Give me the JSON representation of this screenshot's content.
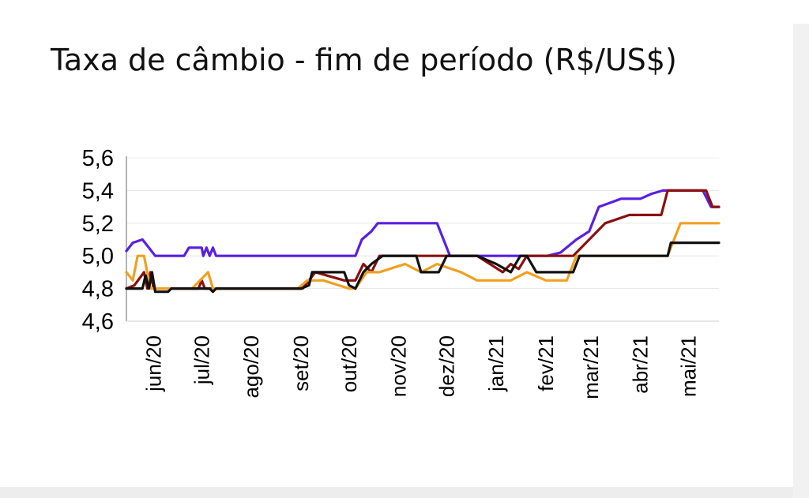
{
  "chart_data": {
    "type": "line",
    "title": "Taxa de câmbio - fim de período (R$/US$)",
    "xlabel": "",
    "ylabel": "",
    "ylim": [
      4.6,
      5.6
    ],
    "yticks": [
      "5,6",
      "5,4",
      "5,2",
      "5,0",
      "4,8",
      "4,6"
    ],
    "ytick_values": [
      5.6,
      5.4,
      5.2,
      5.0,
      4.8,
      4.6
    ],
    "x_range": [
      "2020-05-15",
      "2021-05-20"
    ],
    "x_tick_labels": [
      "jun/20",
      "jul/20",
      "ago/20",
      "set/20",
      "out/20",
      "nov/20",
      "dez/20",
      "jan/21",
      "fev/21",
      "mar/21",
      "abr/21",
      "mai/21"
    ],
    "x_tick_dates": [
      "2020-06-01",
      "2020-07-01",
      "2020-08-01",
      "2020-09-01",
      "2020-10-01",
      "2020-11-01",
      "2020-12-01",
      "2021-01-01",
      "2021-02-01",
      "2021-03-01",
      "2021-04-01",
      "2021-05-01"
    ],
    "grid": true,
    "legend": "none",
    "series": [
      {
        "color": "#5a1fe0",
        "points": [
          [
            "2020-05-15",
            5.03
          ],
          [
            "2020-05-19",
            5.08
          ],
          [
            "2020-05-25",
            5.1
          ],
          [
            "2020-05-29",
            5.05
          ],
          [
            "2020-06-02",
            5.0
          ],
          [
            "2020-06-20",
            5.0
          ],
          [
            "2020-06-23",
            5.05
          ],
          [
            "2020-07-01",
            5.05
          ],
          [
            "2020-07-02",
            5.0
          ],
          [
            "2020-07-04",
            5.05
          ],
          [
            "2020-07-06",
            5.0
          ],
          [
            "2020-07-08",
            5.05
          ],
          [
            "2020-07-10",
            5.0
          ],
          [
            "2020-09-15",
            5.0
          ],
          [
            "2020-10-05",
            5.0
          ],
          [
            "2020-10-09",
            5.1
          ],
          [
            "2020-10-15",
            5.15
          ],
          [
            "2020-10-19",
            5.2
          ],
          [
            "2020-11-25",
            5.2
          ],
          [
            "2020-11-29",
            5.1
          ],
          [
            "2020-12-03",
            5.0
          ],
          [
            "2021-02-02",
            5.0
          ],
          [
            "2021-02-10",
            5.02
          ],
          [
            "2021-02-20",
            5.1
          ],
          [
            "2021-02-28",
            5.15
          ],
          [
            "2021-03-06",
            5.3
          ],
          [
            "2021-03-20",
            5.35
          ],
          [
            "2021-04-01",
            5.35
          ],
          [
            "2021-04-08",
            5.38
          ],
          [
            "2021-04-15",
            5.4
          ],
          [
            "2021-05-10",
            5.4
          ],
          [
            "2021-05-15",
            5.3
          ],
          [
            "2021-05-20",
            5.3
          ]
        ]
      },
      {
        "color": "#8b1010",
        "points": [
          [
            "2020-05-15",
            4.8
          ],
          [
            "2020-05-20",
            4.82
          ],
          [
            "2020-05-26",
            4.9
          ],
          [
            "2020-05-28",
            4.8
          ],
          [
            "2020-05-30",
            4.9
          ],
          [
            "2020-06-01",
            4.8
          ],
          [
            "2020-06-29",
            4.8
          ],
          [
            "2020-07-01",
            4.85
          ],
          [
            "2020-07-03",
            4.8
          ],
          [
            "2020-09-02",
            4.8
          ],
          [
            "2020-09-06",
            4.85
          ],
          [
            "2020-09-10",
            4.9
          ],
          [
            "2020-09-28",
            4.85
          ],
          [
            "2020-10-05",
            4.85
          ],
          [
            "2020-10-10",
            4.95
          ],
          [
            "2020-10-15",
            4.9
          ],
          [
            "2020-10-20",
            5.0
          ],
          [
            "2020-12-20",
            5.0
          ],
          [
            "2020-12-28",
            4.95
          ],
          [
            "2021-01-05",
            4.9
          ],
          [
            "2021-01-10",
            4.95
          ],
          [
            "2021-01-15",
            4.92
          ],
          [
            "2021-01-20",
            5.0
          ],
          [
            "2021-02-18",
            5.0
          ],
          [
            "2021-02-28",
            5.1
          ],
          [
            "2021-03-10",
            5.2
          ],
          [
            "2021-03-25",
            5.25
          ],
          [
            "2021-04-14",
            5.25
          ],
          [
            "2021-04-18",
            5.4
          ],
          [
            "2021-05-12",
            5.4
          ],
          [
            "2021-05-16",
            5.3
          ],
          [
            "2021-05-20",
            5.3
          ]
        ]
      },
      {
        "color": "#f0a020",
        "points": [
          [
            "2020-05-15",
            4.9
          ],
          [
            "2020-05-19",
            4.85
          ],
          [
            "2020-05-22",
            5.0
          ],
          [
            "2020-05-26",
            5.0
          ],
          [
            "2020-05-30",
            4.8
          ],
          [
            "2020-06-25",
            4.8
          ],
          [
            "2020-07-05",
            4.9
          ],
          [
            "2020-07-08",
            4.8
          ],
          [
            "2020-08-30",
            4.8
          ],
          [
            "2020-09-05",
            4.85
          ],
          [
            "2020-09-15",
            4.85
          ],
          [
            "2020-10-01",
            4.8
          ],
          [
            "2020-10-05",
            4.8
          ],
          [
            "2020-10-12",
            4.9
          ],
          [
            "2020-10-20",
            4.9
          ],
          [
            "2020-11-05",
            4.95
          ],
          [
            "2020-11-15",
            4.9
          ],
          [
            "2020-11-25",
            4.95
          ],
          [
            "2020-12-10",
            4.9
          ],
          [
            "2020-12-20",
            4.85
          ],
          [
            "2021-01-10",
            4.85
          ],
          [
            "2021-01-20",
            4.9
          ],
          [
            "2021-02-01",
            4.85
          ],
          [
            "2021-02-14",
            4.85
          ],
          [
            "2021-02-20",
            5.0
          ],
          [
            "2021-04-18",
            5.0
          ],
          [
            "2021-04-22",
            5.1
          ],
          [
            "2021-04-26",
            5.2
          ],
          [
            "2021-05-20",
            5.2
          ]
        ]
      },
      {
        "color": "#111111",
        "points": [
          [
            "2020-05-15",
            4.8
          ],
          [
            "2020-05-25",
            4.8
          ],
          [
            "2020-05-27",
            4.88
          ],
          [
            "2020-05-29",
            4.8
          ],
          [
            "2020-05-31",
            4.9
          ],
          [
            "2020-06-02",
            4.78
          ],
          [
            "2020-06-10",
            4.78
          ],
          [
            "2020-06-12",
            4.8
          ],
          [
            "2020-07-06",
            4.8
          ],
          [
            "2020-07-08",
            4.78
          ],
          [
            "2020-07-10",
            4.8
          ],
          [
            "2020-08-25",
            4.8
          ],
          [
            "2020-09-01",
            4.8
          ],
          [
            "2020-09-06",
            4.82
          ],
          [
            "2020-09-08",
            4.9
          ],
          [
            "2020-09-28",
            4.9
          ],
          [
            "2020-10-01",
            4.82
          ],
          [
            "2020-10-05",
            4.8
          ],
          [
            "2020-10-10",
            4.9
          ],
          [
            "2020-10-15",
            4.95
          ],
          [
            "2020-10-22",
            5.0
          ],
          [
            "2020-11-12",
            5.0
          ],
          [
            "2020-11-15",
            4.9
          ],
          [
            "2020-11-26",
            4.9
          ],
          [
            "2020-12-01",
            5.0
          ],
          [
            "2020-12-20",
            5.0
          ],
          [
            "2021-01-01",
            4.95
          ],
          [
            "2021-01-10",
            4.9
          ],
          [
            "2021-01-16",
            5.0
          ],
          [
            "2021-01-20",
            5.0
          ],
          [
            "2021-01-26",
            4.9
          ],
          [
            "2021-02-18",
            4.9
          ],
          [
            "2021-02-22",
            5.0
          ],
          [
            "2021-04-18",
            5.0
          ],
          [
            "2021-04-20",
            5.08
          ],
          [
            "2021-05-20",
            5.08
          ]
        ]
      }
    ]
  }
}
